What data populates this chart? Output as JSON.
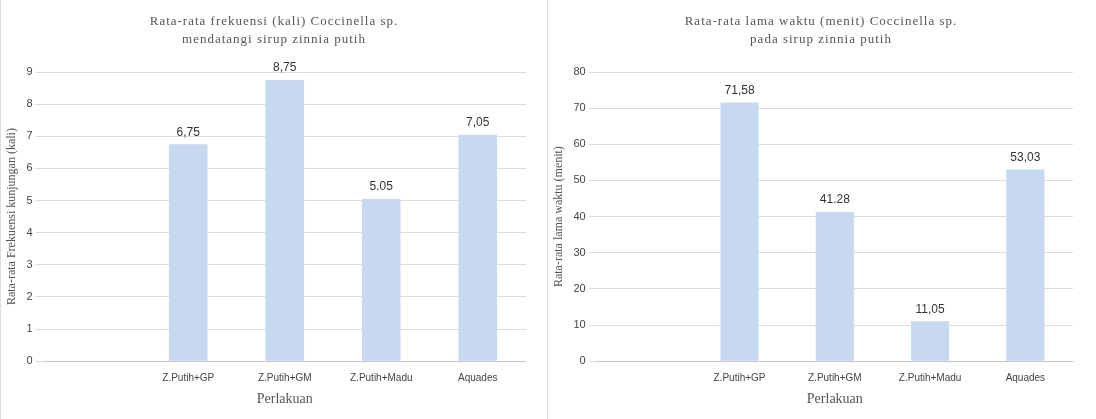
{
  "chart_data": [
    {
      "type": "bar",
      "title": "Rata-rata frekuensi (kali) Coccinella sp. mendatangi sirup zinnia putih",
      "xlabel": "Perlakuan",
      "ylabel": "Rata-rata Frekuensi kunjungan (kali)",
      "categories": [
        null,
        "Z.Putih+GP",
        "Z.Putih+GM",
        "Z.Putih+Madu",
        "Aquades"
      ],
      "values": [
        null,
        6.75,
        8.75,
        5.05,
        7.05
      ],
      "value_labels": [
        null,
        "6,75",
        "8,75",
        "5.05",
        "7,05"
      ],
      "color": "#c6d9f1",
      "ylim": [
        0,
        9
      ],
      "yticks": [
        0,
        1,
        2,
        3,
        4,
        5,
        6,
        7,
        8,
        9
      ],
      "grid": "y",
      "legend": false
    },
    {
      "type": "bar",
      "title": "Rata-rata lama waktu (menit) Coccinella sp. pada sirup zinnia putih",
      "xlabel": "Perlakuan",
      "ylabel": "Rata-rata lama waktu (menit)",
      "categories": [
        null,
        "Z.Putih+GP",
        "Z.Putih+GM",
        "Z.Putih+Madu",
        "Aquades"
      ],
      "values": [
        null,
        71.58,
        41.28,
        11.05,
        53.03
      ],
      "value_labels": [
        null,
        "71,58",
        "41.28",
        "11,05",
        "53,03"
      ],
      "color": "#c6d9f1",
      "ylim": [
        0,
        80
      ],
      "yticks": [
        0,
        10,
        20,
        30,
        40,
        50,
        60,
        70,
        80
      ],
      "grid": "y",
      "legend": false
    }
  ]
}
